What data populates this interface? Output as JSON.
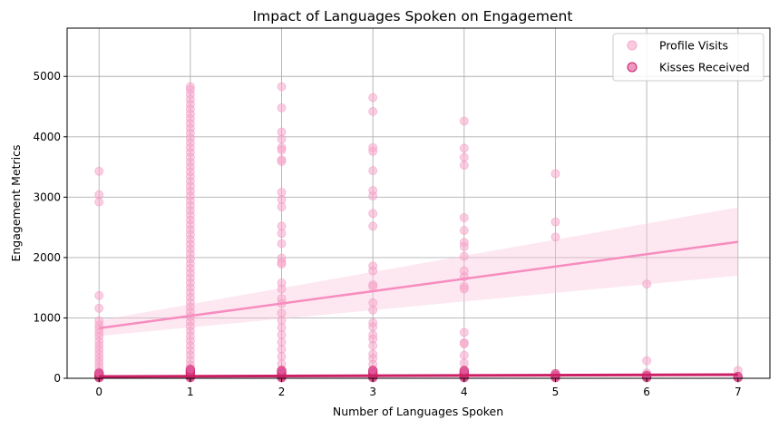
{
  "chart_data": {
    "type": "scatter",
    "title": "Impact of Languages Spoken on Engagement",
    "xlabel": "Number of Languages Spoken",
    "ylabel": "Engagement Metrics",
    "xlim": [
      -0.35,
      7.35
    ],
    "ylim": [
      0,
      5800
    ],
    "xticks": [
      0,
      1,
      2,
      3,
      4,
      5,
      6,
      7
    ],
    "yticks": [
      0,
      1000,
      2000,
      3000,
      4000,
      5000
    ],
    "grid": true,
    "legend_position": "top-right",
    "series": [
      {
        "name": "Profile Visits",
        "color": "#f7a8cc",
        "points": [
          [
            0,
            3430
          ],
          [
            0,
            3040
          ],
          [
            0,
            2920
          ],
          [
            0,
            1370
          ],
          [
            0,
            1160
          ],
          [
            0,
            950
          ],
          [
            0,
            880
          ],
          [
            0,
            820
          ],
          [
            0,
            750
          ],
          [
            0,
            690
          ],
          [
            0,
            610
          ],
          [
            0,
            540
          ],
          [
            0,
            470
          ],
          [
            0,
            400
          ],
          [
            0,
            330
          ],
          [
            0,
            260
          ],
          [
            0,
            190
          ],
          [
            0,
            120
          ],
          [
            0,
            60
          ],
          [
            0,
            20
          ],
          [
            1,
            4830
          ],
          [
            1,
            4780
          ],
          [
            1,
            4700
          ],
          [
            1,
            4620
          ],
          [
            1,
            4540
          ],
          [
            1,
            4460
          ],
          [
            1,
            4380
          ],
          [
            1,
            4300
          ],
          [
            1,
            4220
          ],
          [
            1,
            4140
          ],
          [
            1,
            4060
          ],
          [
            1,
            3980
          ],
          [
            1,
            3900
          ],
          [
            1,
            3820
          ],
          [
            1,
            3740
          ],
          [
            1,
            3660
          ],
          [
            1,
            3580
          ],
          [
            1,
            3500
          ],
          [
            1,
            3420
          ],
          [
            1,
            3340
          ],
          [
            1,
            3260
          ],
          [
            1,
            3180
          ],
          [
            1,
            3100
          ],
          [
            1,
            3020
          ],
          [
            1,
            2940
          ],
          [
            1,
            2860
          ],
          [
            1,
            2780
          ],
          [
            1,
            2700
          ],
          [
            1,
            2620
          ],
          [
            1,
            2540
          ],
          [
            1,
            2460
          ],
          [
            1,
            2380
          ],
          [
            1,
            2300
          ],
          [
            1,
            2220
          ],
          [
            1,
            2140
          ],
          [
            1,
            2060
          ],
          [
            1,
            1980
          ],
          [
            1,
            1900
          ],
          [
            1,
            1820
          ],
          [
            1,
            1740
          ],
          [
            1,
            1660
          ],
          [
            1,
            1580
          ],
          [
            1,
            1500
          ],
          [
            1,
            1420
          ],
          [
            1,
            1340
          ],
          [
            1,
            1260
          ],
          [
            1,
            1180
          ],
          [
            1,
            1100
          ],
          [
            1,
            1020
          ],
          [
            1,
            940
          ],
          [
            1,
            860
          ],
          [
            1,
            780
          ],
          [
            1,
            700
          ],
          [
            1,
            620
          ],
          [
            1,
            540
          ],
          [
            1,
            460
          ],
          [
            1,
            380
          ],
          [
            1,
            300
          ],
          [
            1,
            220
          ],
          [
            1,
            140
          ],
          [
            1,
            60
          ],
          [
            2,
            4830
          ],
          [
            2,
            4480
          ],
          [
            2,
            4080
          ],
          [
            2,
            3960
          ],
          [
            2,
            3820
          ],
          [
            2,
            3780
          ],
          [
            2,
            3620
          ],
          [
            2,
            3590
          ],
          [
            2,
            3080
          ],
          [
            2,
            2960
          ],
          [
            2,
            2840
          ],
          [
            2,
            2520
          ],
          [
            2,
            2400
          ],
          [
            2,
            2230
          ],
          [
            2,
            1990
          ],
          [
            2,
            1920
          ],
          [
            2,
            1890
          ],
          [
            2,
            1580
          ],
          [
            2,
            1480
          ],
          [
            2,
            1320
          ],
          [
            2,
            1240
          ],
          [
            2,
            1080
          ],
          [
            2,
            960
          ],
          [
            2,
            840
          ],
          [
            2,
            720
          ],
          [
            2,
            600
          ],
          [
            2,
            480
          ],
          [
            2,
            360
          ],
          [
            2,
            240
          ],
          [
            2,
            120
          ],
          [
            2,
            30
          ],
          [
            3,
            4650
          ],
          [
            3,
            4420
          ],
          [
            3,
            3820
          ],
          [
            3,
            3760
          ],
          [
            3,
            3440
          ],
          [
            3,
            3110
          ],
          [
            3,
            3020
          ],
          [
            3,
            2730
          ],
          [
            3,
            2520
          ],
          [
            3,
            1860
          ],
          [
            3,
            1780
          ],
          [
            3,
            1550
          ],
          [
            3,
            1520
          ],
          [
            3,
            1250
          ],
          [
            3,
            1130
          ],
          [
            3,
            920
          ],
          [
            3,
            850
          ],
          [
            3,
            720
          ],
          [
            3,
            650
          ],
          [
            3,
            540
          ],
          [
            3,
            400
          ],
          [
            3,
            330
          ],
          [
            3,
            230
          ],
          [
            3,
            140
          ],
          [
            3,
            40
          ],
          [
            4,
            4260
          ],
          [
            4,
            3810
          ],
          [
            4,
            3660
          ],
          [
            4,
            3530
          ],
          [
            4,
            2660
          ],
          [
            4,
            2450
          ],
          [
            4,
            2250
          ],
          [
            4,
            2180
          ],
          [
            4,
            2020
          ],
          [
            4,
            1780
          ],
          [
            4,
            1680
          ],
          [
            4,
            1520
          ],
          [
            4,
            1480
          ],
          [
            4,
            760
          ],
          [
            4,
            590
          ],
          [
            4,
            570
          ],
          [
            4,
            380
          ],
          [
            4,
            250
          ],
          [
            4,
            100
          ],
          [
            5,
            3390
          ],
          [
            5,
            2590
          ],
          [
            5,
            2340
          ],
          [
            5,
            50
          ],
          [
            6,
            1560
          ],
          [
            6,
            290
          ],
          [
            6,
            90
          ],
          [
            7,
            130
          ],
          [
            7,
            30
          ]
        ],
        "trend": {
          "start": [
            0,
            830
          ],
          "end": [
            7,
            2260
          ]
        },
        "ci_at_end": [
          1700,
          2830
        ],
        "ci_at_start": [
          700,
          960
        ]
      },
      {
        "name": "Kisses Received",
        "color": "#e0559a",
        "points": [
          [
            0,
            10
          ],
          [
            0,
            25
          ],
          [
            0,
            40
          ],
          [
            0,
            55
          ],
          [
            0,
            70
          ],
          [
            0,
            85
          ],
          [
            1,
            10
          ],
          [
            1,
            30
          ],
          [
            1,
            50
          ],
          [
            1,
            70
          ],
          [
            1,
            90
          ],
          [
            1,
            110
          ],
          [
            1,
            130
          ],
          [
            1,
            150
          ],
          [
            2,
            10
          ],
          [
            2,
            30
          ],
          [
            2,
            50
          ],
          [
            2,
            70
          ],
          [
            2,
            90
          ],
          [
            2,
            110
          ],
          [
            2,
            130
          ],
          [
            3,
            10
          ],
          [
            3,
            30
          ],
          [
            3,
            50
          ],
          [
            3,
            70
          ],
          [
            3,
            90
          ],
          [
            3,
            110
          ],
          [
            3,
            130
          ],
          [
            4,
            10
          ],
          [
            4,
            30
          ],
          [
            4,
            50
          ],
          [
            4,
            70
          ],
          [
            4,
            90
          ],
          [
            4,
            110
          ],
          [
            4,
            130
          ],
          [
            5,
            10
          ],
          [
            5,
            30
          ],
          [
            5,
            50
          ],
          [
            5,
            75
          ],
          [
            6,
            10
          ],
          [
            6,
            30
          ],
          [
            6,
            50
          ],
          [
            7,
            10
          ],
          [
            7,
            30
          ]
        ],
        "trend": {
          "start": [
            0,
            30
          ],
          "end": [
            7,
            60
          ]
        },
        "trend_color": "#cc1f64"
      }
    ]
  }
}
